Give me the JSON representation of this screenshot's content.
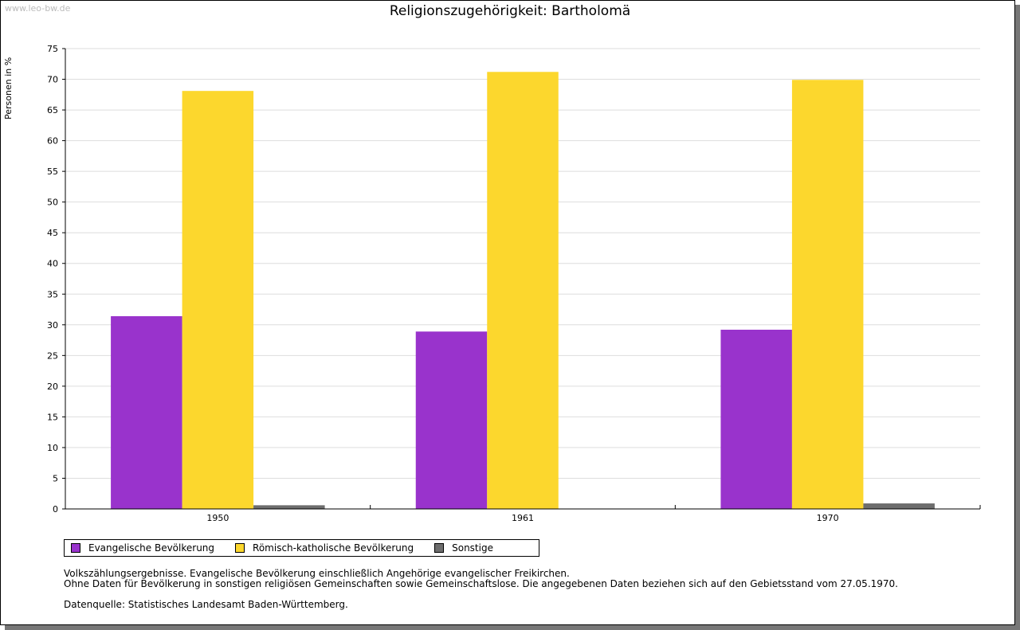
{
  "watermark": "www.leo-bw.de",
  "chart_data": {
    "type": "bar",
    "title": "Religionszugehörigkeit: Bartholomä",
    "ylabel": "Personen in %",
    "xlabel": "",
    "ylim": [
      0,
      75
    ],
    "yticks": [
      0,
      5,
      10,
      15,
      20,
      25,
      30,
      35,
      40,
      45,
      50,
      55,
      60,
      65,
      70,
      75
    ],
    "grid": true,
    "categories": [
      "1950",
      "1961",
      "1970"
    ],
    "series": [
      {
        "name": "Evangelische Bevölkerung",
        "color": "#9933cc",
        "values": [
          31.4,
          28.9,
          29.2
        ]
      },
      {
        "name": "Römisch-katholische Bevölkerung",
        "color": "#fcd72d",
        "values": [
          68.1,
          71.2,
          69.9
        ]
      },
      {
        "name": "Sonstige",
        "color": "#6d6d6d",
        "values": [
          0.6,
          0,
          0.9
        ]
      }
    ],
    "legend_position": "bottom-left"
  },
  "notes": [
    "Volkszählungsergebnisse. Evangelische Bevölkerung einschließlich Angehörige evangelischer Freikirchen.",
    "Ohne Daten für Bevölkerung in sonstigen religiösen Gemeinschaften sowie Gemeinschaftslose. Die angegebenen Daten beziehen sich auf den Gebietsstand vom 27.05.1970.",
    "Datenquelle: Statistisches Landesamt Baden-Württemberg."
  ]
}
